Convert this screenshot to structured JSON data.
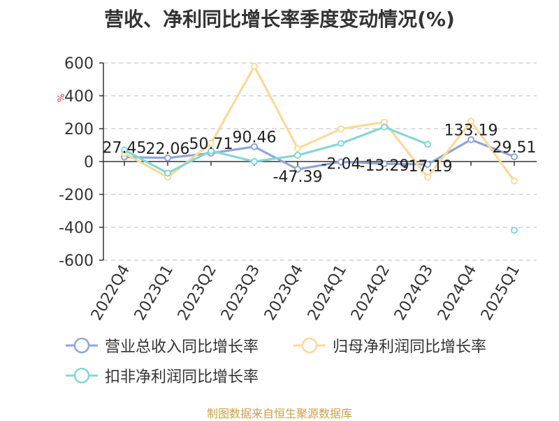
{
  "chart_data": {
    "type": "line",
    "title": "营收、净利同比增长率季度变动情况(%)",
    "ylabel": "%",
    "ylim": [
      -600,
      600
    ],
    "yticks": [
      600,
      400,
      200,
      0,
      -200,
      -400,
      -600
    ],
    "grid": true,
    "legend_position": "bottom",
    "categories": [
      "2022Q4",
      "2023Q1",
      "2023Q2",
      "2023Q3",
      "2023Q4",
      "2024Q1",
      "2024Q2",
      "2024Q3",
      "2024Q4",
      "2025Q1"
    ],
    "series": [
      {
        "name": "营业总收入同比增长率",
        "color": "#8fa6d6",
        "values": [
          27.45,
          22.06,
          50.71,
          90.46,
          -47.39,
          -2.04,
          -13.29,
          -17.19,
          133.19,
          29.51
        ],
        "labels": [
          "27.45",
          "22.06",
          "50.71",
          "90.46",
          "-47.39",
          "-2.04",
          "-13.29",
          "-17.19",
          "133.19",
          "29.51"
        ]
      },
      {
        "name": "归母净利润同比增长率",
        "color": "#fcd89a",
        "values": [
          50,
          -95,
          110,
          580,
          80,
          198,
          240,
          -95,
          245,
          -118
        ]
      },
      {
        "name": "扣非净利润同比增长率",
        "color": "#86d6d6",
        "values": [
          70,
          -70,
          65,
          0,
          38,
          110,
          210,
          105,
          null,
          -418
        ]
      }
    ]
  },
  "footer": "制图数据来自恒生聚源数据库"
}
